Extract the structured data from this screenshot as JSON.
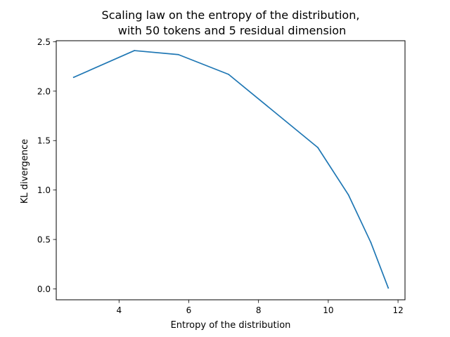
{
  "chart_data": {
    "type": "line",
    "title": "Scaling law on the entropy of the distribution,",
    "subtitle": "with 50 tokens and 5 residual dimension",
    "xlabel": "Entropy of the distribution",
    "ylabel": "KL divergence",
    "xlim": [
      2.2,
      12.2
    ],
    "ylim": [
      -0.11,
      2.51
    ],
    "xticks": [
      4,
      6,
      8,
      10,
      12
    ],
    "yticks": [
      0.0,
      0.5,
      1.0,
      1.5,
      2.0,
      2.5
    ],
    "xtick_labels": [
      "4",
      "6",
      "8",
      "10",
      "12"
    ],
    "ytick_labels": [
      "0.0",
      "0.5",
      "1.0",
      "1.5",
      "2.0",
      "2.5"
    ],
    "grid": false,
    "series": [
      {
        "color": "#1f77b4",
        "x": [
          2.7,
          4.44,
          5.7,
          7.14,
          9.7,
          10.58,
          11.22,
          11.72
        ],
        "y": [
          2.14,
          2.41,
          2.37,
          2.17,
          1.43,
          0.95,
          0.47,
          0.01
        ]
      }
    ]
  }
}
